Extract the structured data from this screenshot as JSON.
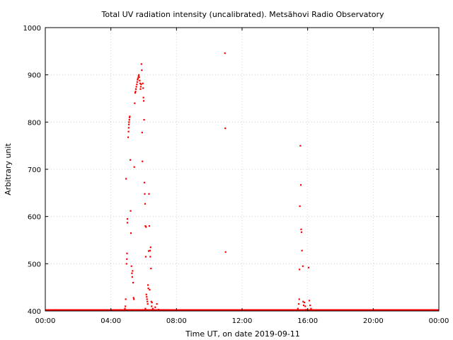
{
  "chart_data": {
    "type": "scatter",
    "title": "Total UV radiation intensity (uncalibrated). Metsähovi Radio Observatory",
    "xlabel": "Time UT, on date 2019-09-11",
    "ylabel": "Arbitrary unit",
    "xlim": [
      0,
      24
    ],
    "ylim": [
      400,
      1000
    ],
    "x_unit": "hours UT",
    "grid": true,
    "legend": "none",
    "x_ticks": [
      {
        "value": 0,
        "label": "00:00"
      },
      {
        "value": 4,
        "label": "04:00"
      },
      {
        "value": 8,
        "label": "08:00"
      },
      {
        "value": 12,
        "label": "12:00"
      },
      {
        "value": 16,
        "label": "16:00"
      },
      {
        "value": 20,
        "label": "20:00"
      },
      {
        "value": 24,
        "label": "00:00"
      }
    ],
    "y_ticks": [
      400,
      500,
      600,
      700,
      800,
      900,
      1000
    ],
    "baseline": {
      "from": 0,
      "to": 24,
      "value": 400
    },
    "series": [
      {
        "color": "#ff0000",
        "points": [
          [
            4.82,
            401
          ],
          [
            4.85,
            405
          ],
          [
            4.88,
            410
          ],
          [
            4.9,
            425
          ],
          [
            4.92,
            680
          ],
          [
            4.95,
            500
          ],
          [
            4.97,
            510
          ],
          [
            4.98,
            522
          ],
          [
            5.0,
            587
          ],
          [
            5.0,
            595
          ],
          [
            5.05,
            768
          ],
          [
            5.07,
            780
          ],
          [
            5.08,
            788
          ],
          [
            5.09,
            795
          ],
          [
            5.1,
            800
          ],
          [
            5.12,
            805
          ],
          [
            5.13,
            810
          ],
          [
            5.15,
            812
          ],
          [
            5.18,
            720
          ],
          [
            5.2,
            612
          ],
          [
            5.22,
            565
          ],
          [
            5.25,
            495
          ],
          [
            5.28,
            480
          ],
          [
            5.3,
            472
          ],
          [
            5.32,
            485
          ],
          [
            5.35,
            460
          ],
          [
            5.38,
            428
          ],
          [
            5.4,
            425
          ],
          [
            5.42,
            705
          ],
          [
            5.45,
            840
          ],
          [
            5.48,
            862
          ],
          [
            5.5,
            865
          ],
          [
            5.52,
            870
          ],
          [
            5.55,
            875
          ],
          [
            5.58,
            880
          ],
          [
            5.6,
            885
          ],
          [
            5.62,
            890
          ],
          [
            5.65,
            893
          ],
          [
            5.68,
            897
          ],
          [
            5.7,
            900
          ],
          [
            5.72,
            895
          ],
          [
            5.75,
            888
          ],
          [
            5.78,
            882
          ],
          [
            5.8,
            870
          ],
          [
            5.82,
            875
          ],
          [
            5.84,
            880
          ],
          [
            5.86,
            923
          ],
          [
            5.88,
            910
          ],
          [
            5.9,
            778
          ],
          [
            5.92,
            717
          ],
          [
            5.94,
            882
          ],
          [
            5.96,
            872
          ],
          [
            5.98,
            852
          ],
          [
            6.0,
            845
          ],
          [
            6.02,
            805
          ],
          [
            6.04,
            672
          ],
          [
            6.06,
            648
          ],
          [
            6.08,
            627
          ],
          [
            6.1,
            580
          ],
          [
            6.12,
            515
          ],
          [
            6.14,
            578
          ],
          [
            6.16,
            435
          ],
          [
            6.18,
            430
          ],
          [
            6.2,
            425
          ],
          [
            6.22,
            420
          ],
          [
            6.24,
            415
          ],
          [
            6.26,
            455
          ],
          [
            6.28,
            448
          ],
          [
            6.3,
            527
          ],
          [
            6.32,
            648
          ],
          [
            6.34,
            580
          ],
          [
            6.36,
            445
          ],
          [
            6.38,
            528
          ],
          [
            6.4,
            515
          ],
          [
            6.42,
            535
          ],
          [
            6.44,
            490
          ],
          [
            6.46,
            420
          ],
          [
            6.48,
            410
          ],
          [
            6.5,
            418
          ],
          [
            6.55,
            405
          ],
          [
            6.6,
            402
          ],
          [
            6.7,
            408
          ],
          [
            6.8,
            415
          ],
          [
            6.9,
            403
          ],
          [
            6.1,
            405
          ],
          [
            6.0,
            402
          ],
          [
            10.95,
            946
          ],
          [
            10.97,
            787
          ],
          [
            10.99,
            525
          ],
          [
            15.4,
            405
          ],
          [
            15.45,
            415
          ],
          [
            15.48,
            425
          ],
          [
            15.5,
            488
          ],
          [
            15.52,
            622
          ],
          [
            15.55,
            750
          ],
          [
            15.58,
            667
          ],
          [
            15.6,
            573
          ],
          [
            15.62,
            567
          ],
          [
            15.65,
            528
          ],
          [
            15.7,
            495
          ],
          [
            15.72,
            420
          ],
          [
            15.75,
            412
          ],
          [
            15.8,
            418
          ],
          [
            15.85,
            410
          ],
          [
            16.05,
            492
          ],
          [
            16.1,
            422
          ],
          [
            16.15,
            412
          ],
          [
            16.2,
            405
          ],
          [
            15.9,
            403
          ],
          [
            16.3,
            402
          ]
        ]
      }
    ]
  }
}
